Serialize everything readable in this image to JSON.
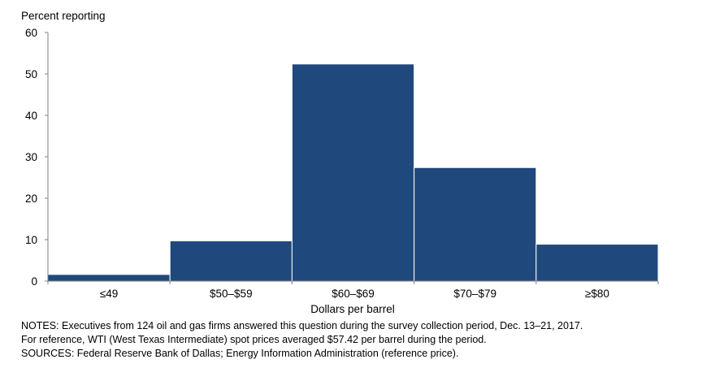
{
  "chart_data": {
    "type": "bar",
    "title": "",
    "ylabel": "Percent reporting",
    "xlabel": "Dollars per barrel",
    "categories": [
      "≤49",
      "$50–$59",
      "$60–$69",
      "$70–$79",
      "≥$80"
    ],
    "values": [
      1.6,
      9.7,
      52.4,
      27.4,
      8.9
    ],
    "ylim": [
      0,
      60
    ],
    "yticks": [
      0,
      10,
      20,
      30,
      40,
      50,
      60
    ],
    "grid": false,
    "bar_color": "#1f497d"
  },
  "notes": {
    "line1": "NOTES: Executives from 124 oil and gas firms answered this question during the survey collection period, Dec. 13–21, 2017.",
    "line2": "For reference, WTI (West Texas Intermediate) spot prices averaged $57.42 per barrel during the period.",
    "line3": "SOURCES: Federal Reserve Bank of Dallas; Energy Information Administration (reference price)."
  }
}
